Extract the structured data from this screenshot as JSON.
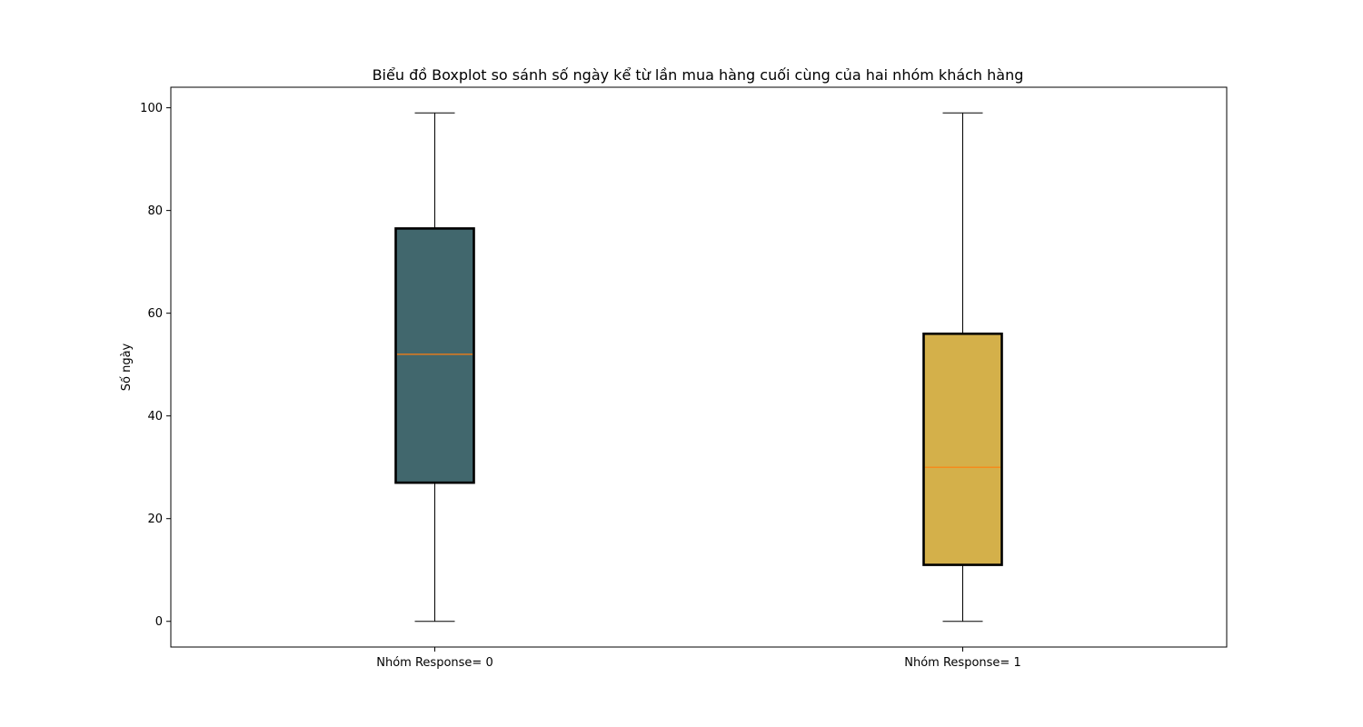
{
  "chart_data": {
    "type": "boxplot",
    "title": "Biểu đồ Boxplot so sánh số ngày kể từ lần mua hàng cuối cùng của hai nhóm khách hàng",
    "xlabel": "",
    "ylabel": "Số ngày",
    "ylim": [
      -5,
      104
    ],
    "yticks": [
      0,
      20,
      40,
      60,
      80,
      100
    ],
    "grid": false,
    "legend": "none",
    "median_color": "#ff7f0e",
    "box_edge_color": "#000000",
    "groups": [
      {
        "name": "Nhóm Response= 0",
        "min": 0,
        "q1": 27,
        "median": 52,
        "q3": 76.5,
        "max": 99,
        "color": "#41676d"
      },
      {
        "name": "Nhóm Response= 1",
        "min": 0,
        "q1": 11,
        "median": 30,
        "q3": 56,
        "max": 99,
        "color": "#d4b04a"
      }
    ]
  }
}
